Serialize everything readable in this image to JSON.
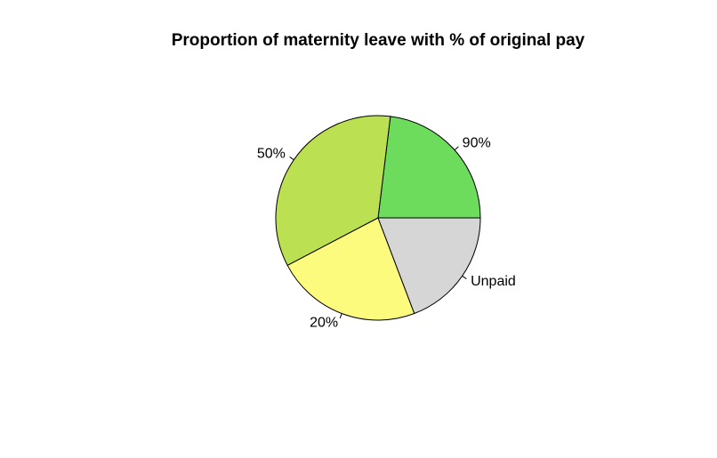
{
  "chart_data": {
    "type": "pie",
    "title": "Proportion of maternity leave with % of original pay",
    "categories": [
      "90%",
      "50%",
      "20%",
      "Unpaid"
    ],
    "values": [
      12,
      18,
      12,
      10
    ],
    "colors": [
      "#6ddb5c",
      "#bbe052",
      "#fdfb7e",
      "#d6d6d6"
    ]
  }
}
